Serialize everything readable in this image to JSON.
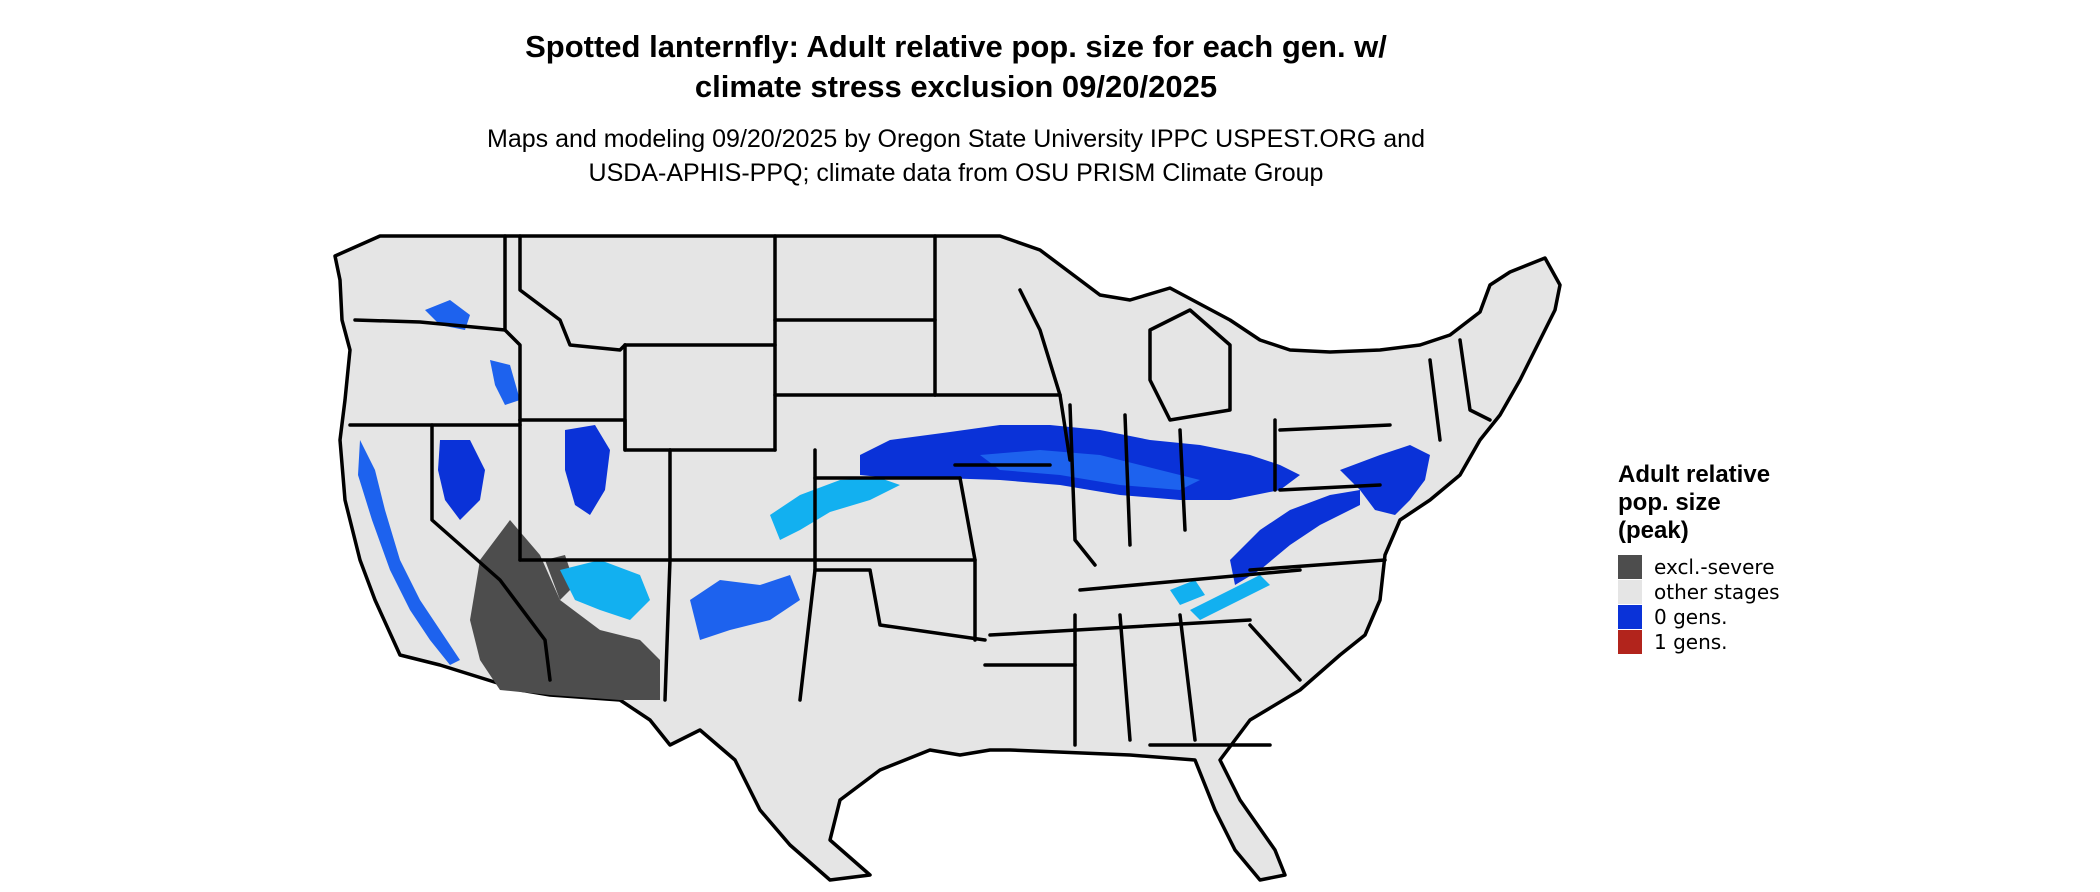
{
  "title_lines": [
    "Spotted lanternfly: Adult relative pop. size for each gen. w/",
    "climate stress exclusion 09/20/2025"
  ],
  "subtitle_lines": [
    "Maps and modeling 09/20/2025 by Oregon State University IPPC USPEST.ORG and",
    "USDA-APHIS-PPQ; climate data from OSU PRISM Climate Group"
  ],
  "legend": {
    "title_lines": [
      "Adult relative",
      "pop. size",
      "(peak)"
    ],
    "items": [
      {
        "label": "excl.-severe",
        "color": "#4d4d4d"
      },
      {
        "label": "other stages",
        "color": "#e5e5e5"
      },
      {
        "label": "0 gens.",
        "color": "#0a32d8"
      },
      {
        "label": "1 gens.",
        "color": "#b2241c"
      }
    ]
  },
  "colors": {
    "land": "#e5e5e5",
    "excluded": "#4d4d4d",
    "blue_dark": "#0a32d8",
    "blue_mid": "#1d62ee",
    "blue_light": "#12b0f0",
    "border": "#000000"
  }
}
